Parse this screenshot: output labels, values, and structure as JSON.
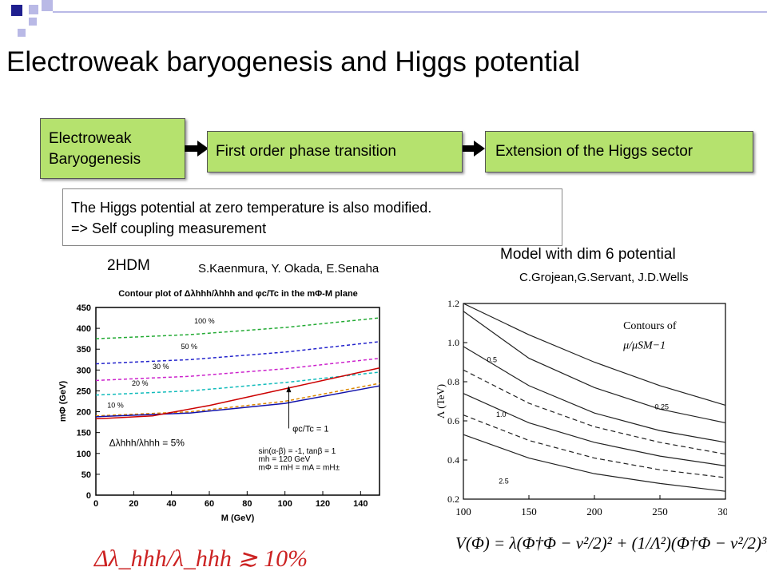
{
  "slide": {
    "title": "Electroweak baryogenesis and Higgs potential",
    "colors": {
      "box_green": "#b5e26e",
      "deco_blue": "#1f1f8f",
      "deco_light": "#b9b9e6"
    }
  },
  "flow": {
    "box1": {
      "line1": "Electroweak",
      "line2": "Baryogenesis"
    },
    "box2": "First order phase transition",
    "box3": "Extension of the Higgs sector"
  },
  "note": {
    "line1": "The Higgs potential at zero temperature is also modified.",
    "line2": "=> Self coupling measurement"
  },
  "left": {
    "label": "2HDM",
    "authors": "S.Kaenmura, Y. Okada, E.Senaha",
    "bottom_formula": "Δλ_hhh/λ_hhh ≳ 10%"
  },
  "right": {
    "label": "Model with dim 6 potential",
    "authors": "C.Grojean,G.Servant, J.D.Wells",
    "formula": "V(Φ) = λ(Φ†Φ − v²/2)² + (1/Λ²)(Φ†Φ − v²/2)³,"
  },
  "chart_data": [
    {
      "type": "line",
      "title": "Contour plot of Δλhhh/λhhh and φc/Tc in the mΦ-M plane",
      "xlabel": "M (GeV)",
      "ylabel": "mΦ (GeV)",
      "xlim": [
        0,
        150
      ],
      "ylim": [
        0,
        450
      ],
      "xticks": [
        0,
        20,
        40,
        60,
        80,
        100,
        120,
        140
      ],
      "yticks": [
        0,
        50,
        100,
        150,
        200,
        250,
        300,
        350,
        400,
        450
      ],
      "series": [
        {
          "name": "100 %",
          "color": "#22aa33",
          "style": "dashed",
          "x": [
            0,
            50,
            100,
            150
          ],
          "y": [
            375,
            385,
            402,
            425
          ]
        },
        {
          "name": "50 %",
          "color": "#2222cc",
          "style": "dashed",
          "x": [
            0,
            50,
            100,
            150
          ],
          "y": [
            315,
            325,
            343,
            368
          ]
        },
        {
          "name": "30 %",
          "color": "#cc22cc",
          "style": "dashed",
          "x": [
            0,
            50,
            100,
            150
          ],
          "y": [
            275,
            285,
            303,
            328
          ]
        },
        {
          "name": "20 %",
          "color": "#11bbbb",
          "style": "dashed",
          "x": [
            0,
            50,
            100,
            150
          ],
          "y": [
            240,
            250,
            270,
            295
          ]
        },
        {
          "name": "10 %",
          "color": "#dd8800",
          "style": "dashed",
          "x": [
            0,
            50,
            100,
            150
          ],
          "y": [
            190,
            200,
            225,
            268
          ]
        },
        {
          "name": "5 %",
          "color": "#1111aa",
          "style": "solid",
          "x": [
            0,
            50,
            100,
            150
          ],
          "y": [
            188,
            197,
            220,
            262
          ]
        },
        {
          "name": "φc/Tc = 1",
          "color": "#cc0000",
          "style": "solid",
          "x": [
            0,
            30,
            60,
            100,
            150
          ],
          "y": [
            183,
            190,
            215,
            255,
            305
          ]
        }
      ],
      "annotations": [
        "100 %",
        "50 %",
        "30 %",
        "20 %",
        "10 %",
        "Δλhhh/λhhh = 5%",
        "φc/Tc = 1",
        "sin(α-β) = -1, tanβ = 1",
        "mh = 120 GeV",
        "mΦ = mH = mA = mH±"
      ]
    },
    {
      "type": "line",
      "title": "Contours of μ/μSM−1",
      "xlabel": "",
      "ylabel": "Λ (TeV)",
      "xlim": [
        100,
        300
      ],
      "ylim": [
        0.2,
        1.2
      ],
      "xticks": [
        100,
        150,
        200,
        250,
        300
      ],
      "yticks": [
        0.2,
        0.4,
        0.6,
        0.8,
        1.0,
        1.2
      ],
      "series": [
        {
          "name": "0.25",
          "style": "solid",
          "x": [
            100,
            150,
            200,
            250,
            300
          ],
          "y": [
            1.2,
            1.04,
            0.9,
            0.78,
            0.68
          ]
        },
        {
          "style": "solid",
          "x": [
            100,
            150,
            200,
            250,
            300
          ],
          "y": [
            1.16,
            0.92,
            0.77,
            0.66,
            0.59
          ]
        },
        {
          "name": "0.5",
          "style": "solid",
          "x": [
            100,
            150,
            200,
            250,
            300
          ],
          "y": [
            0.98,
            0.78,
            0.64,
            0.55,
            0.49
          ]
        },
        {
          "style": "dashed",
          "x": [
            100,
            150,
            200,
            250,
            300
          ],
          "y": [
            0.86,
            0.69,
            0.57,
            0.49,
            0.43
          ]
        },
        {
          "name": "1.0",
          "style": "solid",
          "x": [
            100,
            150,
            200,
            250,
            300
          ],
          "y": [
            0.74,
            0.59,
            0.49,
            0.42,
            0.37
          ]
        },
        {
          "style": "dashed",
          "x": [
            100,
            150,
            200,
            250,
            300
          ],
          "y": [
            0.63,
            0.5,
            0.41,
            0.35,
            0.31
          ]
        },
        {
          "name": "2.5",
          "style": "solid",
          "x": [
            100,
            150,
            200,
            250,
            300
          ],
          "y": [
            0.53,
            0.41,
            0.33,
            0.28,
            0.24
          ]
        }
      ],
      "annotations": [
        "Contours of",
        "μ/μSM−1",
        "0.25",
        "0.5",
        "1.0",
        "2.5"
      ]
    }
  ]
}
